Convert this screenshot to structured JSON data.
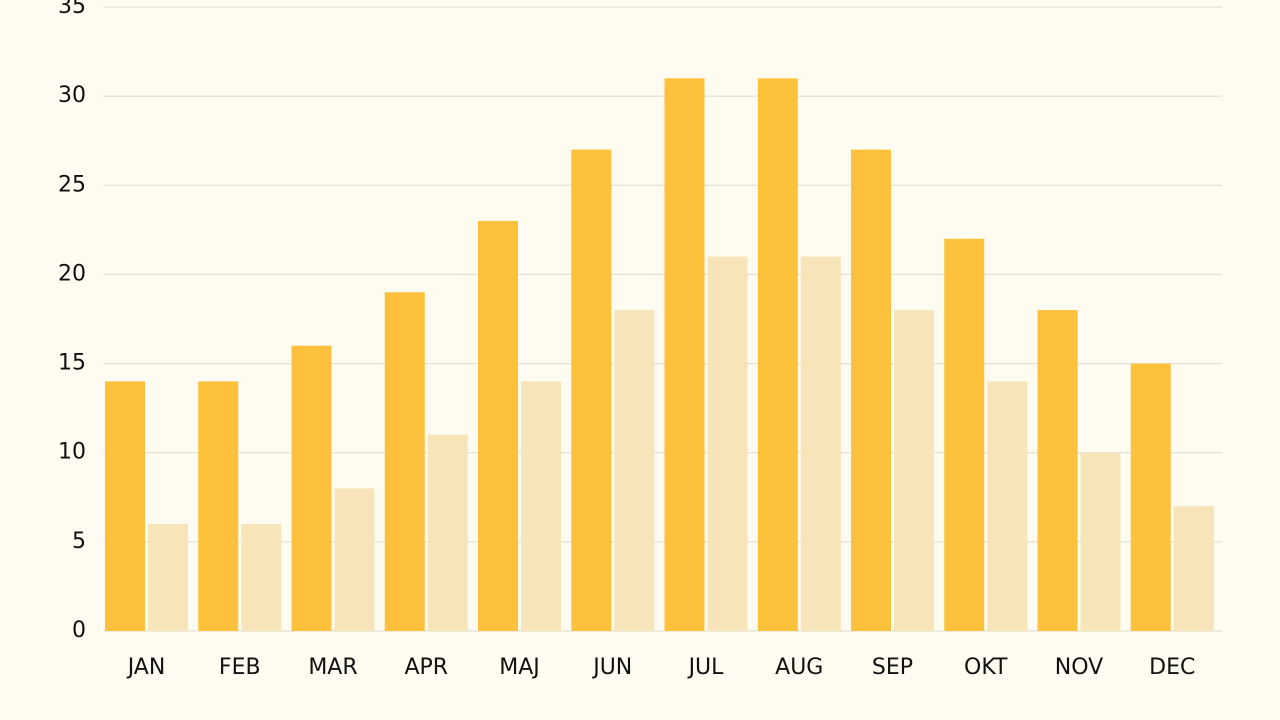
{
  "chart_data": {
    "type": "bar",
    "categories": [
      "JAN",
      "FEB",
      "MAR",
      "APR",
      "MAJ",
      "JUN",
      "JUL",
      "AUG",
      "SEP",
      "OKT",
      "NOV",
      "DEC"
    ],
    "series": [
      {
        "color": "#fdc13c",
        "values": [
          14,
          14,
          16,
          19,
          23,
          27,
          31,
          31,
          27,
          22,
          18,
          15
        ]
      },
      {
        "color": "#f7e4b9",
        "values": [
          6,
          6,
          8,
          11,
          14,
          18,
          21,
          21,
          18,
          14,
          10,
          7
        ]
      }
    ],
    "ylim": [
      0,
      35
    ],
    "yticks": [
      0,
      5,
      10,
      15,
      20,
      25,
      30,
      35
    ],
    "grid": true
  }
}
